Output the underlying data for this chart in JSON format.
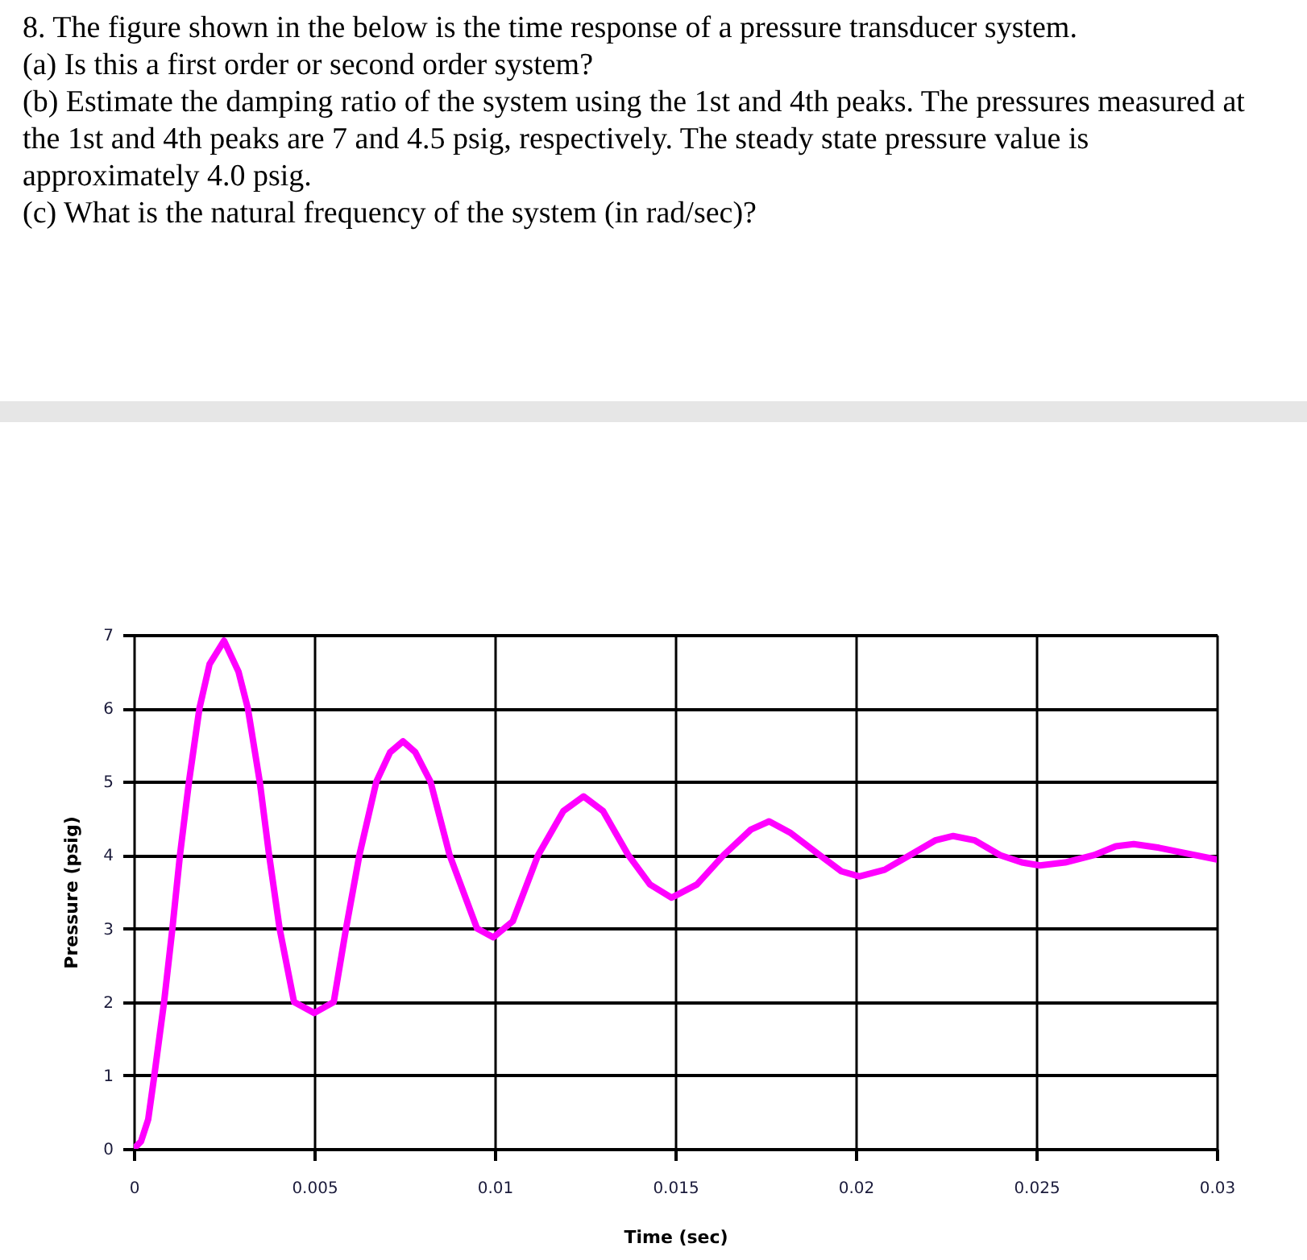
{
  "chart_data": {
    "type": "line",
    "title": "8. The figure shown in the below is the time response of a pressure transducer system.",
    "annotations": [
      "(a) Is this a first order or second order system?",
      "(b) Estimate the damping ratio of the system using the 1st and 4th peaks. The pressures measured at the 1st and 4th peaks are 7 and 4.5 psig, respectively. The steady state pressure value is approximately 4.0 psig.",
      "(c) What is the natural frequency of the system (in rad/sec)?"
    ],
    "xlabel": "Time (sec)",
    "ylabel": "Pressure (psig)",
    "series": [
      {
        "color": "#ff00ff",
        "x": [
          0,
          0.0002,
          0.0004,
          0.00057,
          0.00084,
          0.00107,
          0.00128,
          0.00153,
          0.00182,
          0.0021,
          0.0025,
          0.0029,
          0.00316,
          0.00349,
          0.00375,
          0.00404,
          0.00444,
          0.005,
          0.00554,
          0.00588,
          0.00625,
          0.00672,
          0.0071,
          0.00746,
          0.0078,
          0.00822,
          0.00875,
          0.00951,
          0.00996,
          0.0105,
          0.0112,
          0.0119,
          0.01246,
          0.013,
          0.0137,
          0.0143,
          0.0149,
          0.0156,
          0.01634,
          0.0171,
          0.0176,
          0.0182,
          0.019,
          0.0196,
          0.0201,
          0.0208,
          0.0215,
          0.0222,
          0.0227,
          0.0233,
          0.024,
          0.0246,
          0.0251,
          0.0258,
          0.0266,
          0.0272,
          0.0277,
          0.0284,
          0.03
        ],
        "values": [
          0,
          0.1,
          0.4,
          1,
          2,
          3,
          4,
          5,
          6,
          6.6,
          6.92,
          6.5,
          6,
          5,
          4,
          3,
          2,
          1.85,
          2,
          3,
          4,
          5,
          5.4,
          5.55,
          5.4,
          5,
          4,
          3,
          2.88,
          3.1,
          4,
          4.6,
          4.8,
          4.6,
          4,
          3.6,
          3.42,
          3.6,
          4,
          4.35,
          4.46,
          4.3,
          4,
          3.78,
          3.71,
          3.8,
          4,
          4.2,
          4.26,
          4.2,
          4,
          3.9,
          3.86,
          3.9,
          4,
          4.12,
          4.15,
          4.1,
          3.94
        ]
      }
    ],
    "xlim": [
      0,
      0.03
    ],
    "xticks": [
      0,
      0.005,
      0.01,
      0.015,
      0.02,
      0.025,
      0.03
    ],
    "ylim": [
      0,
      7
    ],
    "yticks": [
      0,
      1,
      2,
      3,
      4,
      5,
      6,
      7
    ],
    "grid": true,
    "line_style": "solid"
  }
}
